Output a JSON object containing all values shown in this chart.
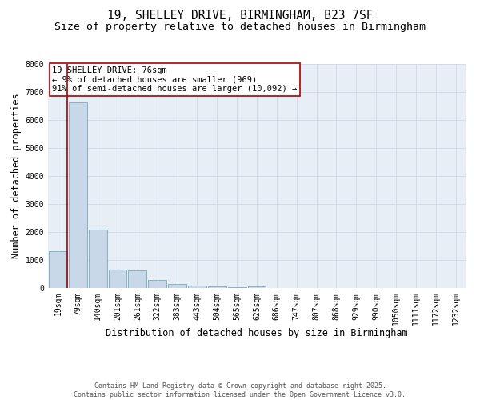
{
  "title_line1": "19, SHELLEY DRIVE, BIRMINGHAM, B23 7SF",
  "title_line2": "Size of property relative to detached houses in Birmingham",
  "xlabel": "Distribution of detached houses by size in Birmingham",
  "ylabel": "Number of detached properties",
  "categories": [
    "19sqm",
    "79sqm",
    "140sqm",
    "201sqm",
    "261sqm",
    "322sqm",
    "383sqm",
    "443sqm",
    "504sqm",
    "565sqm",
    "625sqm",
    "686sqm",
    "747sqm",
    "807sqm",
    "868sqm",
    "929sqm",
    "990sqm",
    "1050sqm",
    "1111sqm",
    "1172sqm",
    "1232sqm"
  ],
  "values": [
    1320,
    6620,
    2080,
    650,
    640,
    295,
    130,
    90,
    55,
    30,
    55,
    0,
    0,
    0,
    0,
    0,
    0,
    0,
    0,
    0,
    0
  ],
  "bar_color": "#c8d8e8",
  "bar_edge_color": "#7aaabb",
  "vline_color": "#aa0000",
  "vline_x_index": 0,
  "annotation_text": "19 SHELLEY DRIVE: 76sqm\n← 9% of detached houses are smaller (969)\n91% of semi-detached houses are larger (10,092) →",
  "annotation_box_facecolor": "#ffffff",
  "annotation_box_edgecolor": "#aa0000",
  "ylim": [
    0,
    8000
  ],
  "yticks": [
    0,
    1000,
    2000,
    3000,
    4000,
    5000,
    6000,
    7000,
    8000
  ],
  "grid_color": "#c5d5e5",
  "bg_color": "#e8eef5",
  "footnote": "Contains HM Land Registry data © Crown copyright and database right 2025.\nContains public sector information licensed under the Open Government Licence v3.0.",
  "title_fontsize": 10.5,
  "subtitle_fontsize": 9.5,
  "axis_label_fontsize": 8.5,
  "tick_fontsize": 7,
  "annotation_fontsize": 7.5,
  "footnote_fontsize": 6
}
